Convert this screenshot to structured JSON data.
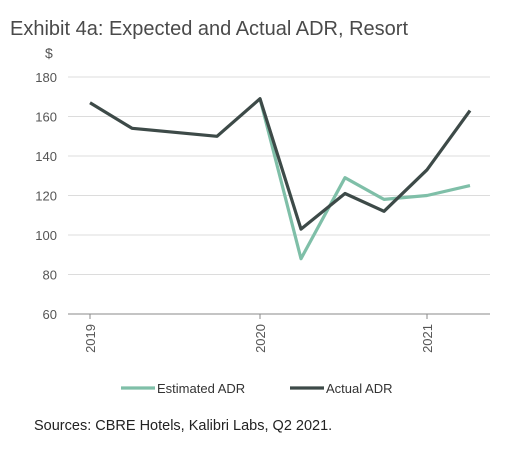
{
  "title": "Exhibit 4a: Expected and Actual ADR, Resort",
  "unit": "$",
  "source": "Sources: CBRE Hotels, Kalibri Labs, Q2 2021.",
  "chart_data": {
    "type": "line",
    "title": "Exhibit 4a: Expected and Actual ADR, Resort",
    "ylabel": "$",
    "ylim": [
      60,
      180
    ],
    "yticks": [
      60,
      80,
      100,
      120,
      140,
      160,
      180
    ],
    "x": [
      "2019Q1",
      "2019Q2",
      "2019Q4",
      "2020Q1",
      "2020Q2",
      "2020Q3",
      "2020Q4",
      "2021Q1",
      "2021Q2"
    ],
    "xtick_labels": [
      "2019",
      "2020",
      "2021"
    ],
    "xtick_positions": [
      "2019Q1",
      "2020Q1",
      "2021Q1"
    ],
    "grid": "horizontal",
    "legend_placement": "bottom",
    "series": [
      {
        "name": "Estimated ADR",
        "color": "#7fbfa8",
        "values": [
          null,
          null,
          null,
          169,
          88,
          129,
          118,
          120,
          125
        ]
      },
      {
        "name": "Actual ADR",
        "color": "#3d4a48",
        "values": [
          167,
          154,
          150,
          169,
          103,
          121,
          112,
          133,
          163
        ]
      }
    ]
  }
}
